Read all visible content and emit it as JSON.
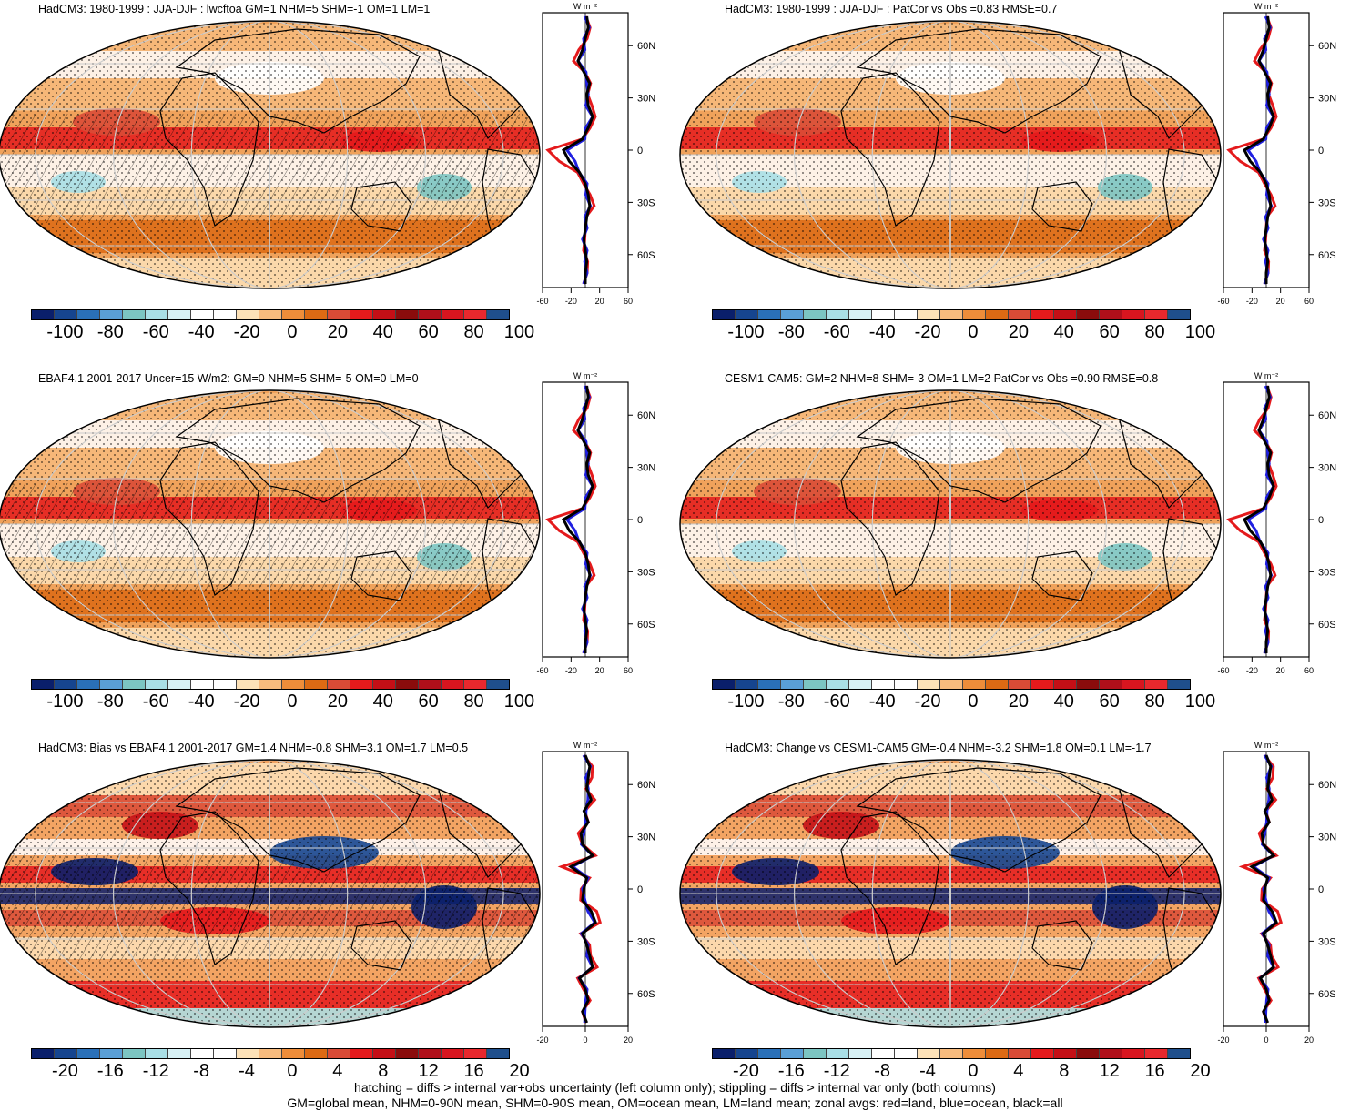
{
  "panels": [
    {
      "id": "p1",
      "title": "HadCM3: 1980-1999 : JJA-DJF : lwcftoa GM=1 NHM=5 SHM=-1 OM=1 LM=1",
      "scale": "big",
      "hatch": true,
      "zonal_ticks": [
        "-60",
        "-20",
        "20",
        "60"
      ]
    },
    {
      "id": "p2",
      "title": "HadCM3: 1980-1999 : JJA-DJF : PatCor vs Obs =0.83 RMSE=0.7",
      "scale": "big",
      "hatch": false,
      "zonal_ticks": [
        "-60",
        "-20",
        "20",
        "60"
      ]
    },
    {
      "id": "p3",
      "title": "EBAF4.1 2001-2017 Uncer=15 W/m2: GM=0 NHM=5 SHM=-5 OM=0 LM=0",
      "scale": "big",
      "hatch": true,
      "zonal_ticks": [
        "-60",
        "-20",
        "20",
        "60"
      ]
    },
    {
      "id": "p4",
      "title": "CESM1-CAM5: GM=2 NHM=8 SHM=-3 OM=1 LM=2 PatCor vs Obs =0.90 RMSE=0.8",
      "scale": "big",
      "hatch": false,
      "zonal_ticks": [
        "-60",
        "-20",
        "20",
        "60"
      ]
    },
    {
      "id": "p5",
      "title": "HadCM3: Bias vs EBAF4.1 2001-2017 GM=1.4 NHM=-0.8 SHM=3.1 OM=1.7 LM=0.5",
      "scale": "small",
      "hatch": true,
      "zonal_ticks": [
        "-20",
        "0",
        "20"
      ]
    },
    {
      "id": "p6",
      "title": "HadCM3: Change vs CESM1-CAM5 GM=-0.4 NHM=-3.2 SHM=1.8 OM=0.1 LM=-1.7",
      "scale": "small",
      "hatch": false,
      "zonal_ticks": [
        "-20",
        "0",
        "20"
      ]
    }
  ],
  "zonal_unit": "W m⁻²",
  "lat_labels": [
    "60N",
    "30N",
    "0",
    "30S",
    "60S"
  ],
  "colorbar": {
    "colors": [
      "#0a1f6b",
      "#16458f",
      "#2a70b8",
      "#5a9fd6",
      "#7cc5c2",
      "#a9dfe6",
      "#d7f1f5",
      "#ffffff",
      "#ffffff",
      "#fde2b8",
      "#f7bb7e",
      "#ee8d3a",
      "#dc6a14",
      "#d94b36",
      "#e41a1c",
      "#c40f16",
      "#8a0c0c",
      "#b00f1a",
      "#d8151f",
      "#e8282d",
      "#1f4f8c"
    ],
    "labels_big": [
      "-100",
      "-80",
      "-60",
      "-40",
      "-20",
      "0",
      "20",
      "40",
      "60",
      "80",
      "100"
    ],
    "labels_small": [
      "-20",
      "-16",
      "-12",
      "-8",
      "-4",
      "0",
      "4",
      "8",
      "12",
      "16",
      "20"
    ]
  },
  "footer_lines": [
    "hatching = diffs > internal var+obs uncertainty (left column only); stippling = diffs > internal var only (both columns)",
    "GM=global mean, NHM=0-90N mean, SHM=0-90S mean, OM=ocean mean, LM=land mean; zonal avgs: red=land, blue=ocean, black=all"
  ],
  "legend_colors": {
    "land": "#e41a1c",
    "ocean": "#1f1fe0",
    "all": "#000000"
  }
}
